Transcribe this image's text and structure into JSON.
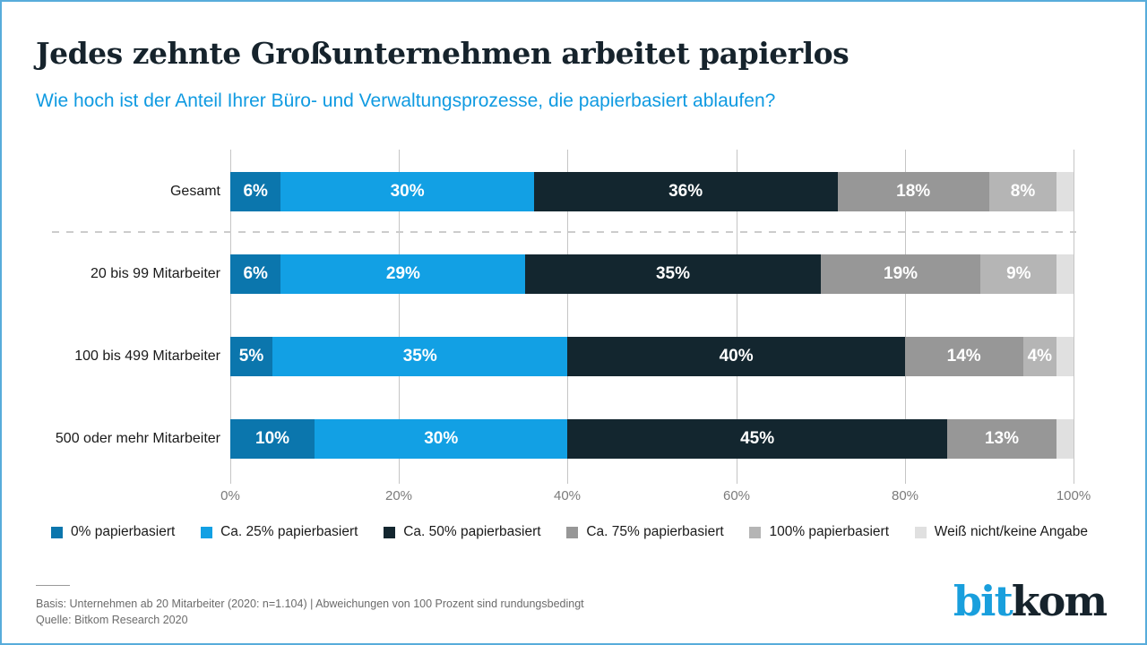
{
  "page": {
    "border_color": "#58acdb",
    "background": "#ffffff"
  },
  "header": {
    "title": "Jedes zehnte Großunternehmen arbeitet papierlos",
    "subtitle": "Wie hoch ist der Anteil Ihrer Büro- und Verwaltungsprozesse, die papierbasiert ablaufen?",
    "title_color": "#16232c",
    "subtitle_color": "#0f9ae1"
  },
  "chart_data": {
    "type": "bar",
    "stacked": true,
    "orientation": "horizontal",
    "title": "Jedes zehnte Großunternehmen arbeitet papierlos",
    "subtitle": "Wie hoch ist der Anteil Ihrer Büro- und Verwaltungsprozesse, die papierbasiert ablaufen?",
    "categories": [
      "Gesamt",
      "20 bis 99 Mitarbeiter",
      "100 bis 499 Mitarbeiter",
      "500 oder mehr Mitarbeiter"
    ],
    "series": [
      {
        "name": "0% papierbasiert",
        "color": "#0b76ad",
        "values": [
          6,
          6,
          5,
          10
        ]
      },
      {
        "name": "Ca. 25% papierbasiert",
        "color": "#12a0e4",
        "values": [
          30,
          29,
          35,
          30
        ]
      },
      {
        "name": "Ca. 50% papierbasiert",
        "color": "#13262f",
        "values": [
          36,
          35,
          40,
          45
        ]
      },
      {
        "name": "Ca. 75% papierbasiert",
        "color": "#979797",
        "values": [
          18,
          19,
          14,
          13
        ]
      },
      {
        "name": "100% papierbasiert",
        "color": "#b5b5b5",
        "values": [
          8,
          9,
          4,
          0
        ]
      },
      {
        "name": "Weiß nicht/keine Angabe",
        "color": "#e0e0e0",
        "values": [
          2,
          2,
          2,
          2
        ]
      }
    ],
    "xticks": [
      "0%",
      "20%",
      "40%",
      "60%",
      "80%",
      "100%"
    ],
    "xlim": [
      0,
      100
    ],
    "grid": true,
    "legend_position": "bottom",
    "value_label_suffix": "%",
    "value_label_min": 4,
    "separator_after_row_index": 0
  },
  "footer": {
    "basis": "Basis: Unternehmen ab 20 Mitarbeiter (2020: n=1.104) | Abweichungen von 100 Prozent sind rundungsbedingt",
    "quelle": "Quelle: Bitkom Research 2020"
  },
  "logo": {
    "part1": "bit",
    "part2": "kom",
    "part1_color": "#199fdd",
    "part2_color": "#16232c"
  }
}
